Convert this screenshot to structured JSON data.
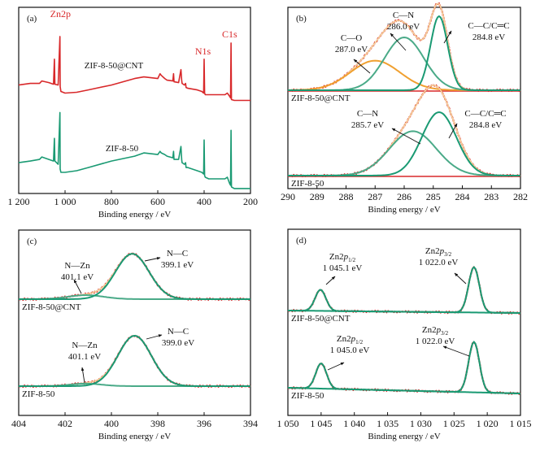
{
  "chart_data": [
    {
      "panel": "(a)",
      "type": "line",
      "title": "",
      "xlabel": "Binding energy / eV",
      "ylabel": "",
      "xlim": [
        1200,
        200
      ],
      "x_reversed": true,
      "xticks": [
        1200,
        1000,
        800,
        600,
        400,
        200
      ],
      "xtick_labels": [
        "1 200",
        "1 000",
        "800",
        "600",
        "400",
        "200"
      ],
      "grid": false,
      "series": [
        {
          "name": "ZIF-8-50@CNT",
          "color": "#d8282a",
          "x": [
            1200,
            1150,
            1110,
            1100,
            1070,
            1050,
            1046,
            1044,
            1030,
            1022,
            1021,
            1018,
            1000,
            950,
            900,
            800,
            700,
            660,
            600,
            590,
            585,
            570,
            560,
            535,
            532,
            530,
            510,
            500,
            497,
            495,
            485,
            480,
            478,
            470,
            430,
            410,
            402,
            400,
            398,
            395,
            380,
            330,
            310,
            300,
            290,
            286,
            284,
            282,
            270,
            200
          ],
          "y": [
            0.56,
            0.57,
            0.57,
            0.585,
            0.575,
            0.565,
            0.72,
            0.565,
            0.56,
            0.86,
            0.55,
            0.52,
            0.51,
            0.515,
            0.53,
            0.56,
            0.6,
            0.61,
            0.6,
            0.63,
            0.62,
            0.6,
            0.59,
            0.585,
            0.63,
            0.58,
            0.575,
            0.655,
            0.59,
            0.57,
            0.56,
            0.57,
            0.545,
            0.54,
            0.53,
            0.52,
            0.51,
            0.72,
            0.51,
            0.5,
            0.5,
            0.5,
            0.5,
            0.51,
            0.49,
            0.48,
            0.82,
            0.47,
            0.465,
            0.465
          ]
        },
        {
          "name": "ZIF-8-50",
          "color": "#1a9a73",
          "x": [
            1200,
            1150,
            1110,
            1100,
            1070,
            1050,
            1046,
            1044,
            1030,
            1022,
            1021,
            1018,
            1000,
            950,
            900,
            800,
            700,
            660,
            600,
            590,
            585,
            570,
            560,
            535,
            532,
            530,
            510,
            500,
            497,
            495,
            485,
            480,
            478,
            470,
            430,
            410,
            402,
            400,
            398,
            395,
            380,
            330,
            310,
            300,
            290,
            286,
            284,
            282,
            270,
            200
          ],
          "y": [
            0.08,
            0.09,
            0.1,
            0.115,
            0.1,
            0.09,
            0.23,
            0.09,
            0.07,
            0.39,
            0.04,
            0.02,
            0.02,
            0.03,
            0.05,
            0.09,
            0.12,
            0.14,
            0.13,
            0.15,
            0.14,
            0.13,
            0.12,
            0.11,
            0.15,
            0.1,
            0.1,
            0.18,
            0.1,
            0.08,
            0.07,
            0.08,
            0.05,
            0.05,
            0.03,
            0.02,
            0.01,
            0.22,
            0.0,
            -0.01,
            -0.02,
            -0.02,
            -0.02,
            -0.01,
            -0.05,
            -0.06,
            0.28,
            -0.07,
            -0.08,
            -0.08
          ]
        }
      ],
      "annotations": [
        {
          "text": "Zn2p",
          "x": 1020,
          "color": "#d8282a"
        },
        {
          "text": "N1s",
          "x": 400,
          "color": "#d8282a"
        },
        {
          "text": "C1s",
          "x": 284,
          "color": "#d8282a"
        },
        {
          "text": "ZIF-8-50@CNT",
          "label_for": "upper"
        },
        {
          "text": "ZIF-8-50",
          "label_for": "lower"
        }
      ]
    },
    {
      "panel": "(b)",
      "type": "line",
      "xlabel": "Binding energy / eV",
      "xlim": [
        290,
        282
      ],
      "x_reversed": true,
      "xticks": [
        290,
        289,
        288,
        287,
        286,
        285,
        284,
        283,
        282
      ],
      "xtick_labels": [
        "290",
        "289",
        "288",
        "287",
        "286",
        "285",
        "284",
        "283",
        "282"
      ],
      "grid": false,
      "samples": [
        {
          "name": "ZIF-8-50@CNT",
          "components": [
            {
              "label": "C—O",
              "center_eV": 287.0,
              "text": "287.0 eV",
              "color": "#f0a030",
              "height": 0.28,
              "fwhm": 2.0
            },
            {
              "label": "C—N",
              "center_eV": 286.0,
              "text": "286.0 eV",
              "color": "#4aaa88",
              "height": 0.5,
              "fwhm": 1.6
            },
            {
              "label": "C—C/C═C",
              "center_eV": 284.8,
              "text": "284.8 eV",
              "color": "#1a9a73",
              "height": 0.7,
              "fwhm": 0.7
            }
          ]
        },
        {
          "name": "ZIF-8-50",
          "components": [
            {
              "label": "C—N",
              "center_eV": 285.7,
              "text": "285.7 eV",
              "color": "#4aaa88",
              "height": 0.42,
              "fwhm": 1.9
            },
            {
              "label": "C—C/C═C",
              "center_eV": 284.8,
              "text": "284.8 eV",
              "color": "#1a9a73",
              "height": 0.6,
              "fwhm": 1.4
            }
          ]
        }
      ],
      "envelope_colors": {
        "raw": "#d8282a",
        "fit": "#f5d29a",
        "baseline": "#d8282a"
      }
    },
    {
      "panel": "(c)",
      "type": "line",
      "xlabel": "Binding energy / eV",
      "xlim": [
        404,
        394
      ],
      "x_reversed": true,
      "xticks": [
        404,
        402,
        400,
        398,
        396,
        394
      ],
      "xtick_labels": [
        "404",
        "402",
        "400",
        "398",
        "396",
        "394"
      ],
      "grid": false,
      "samples": [
        {
          "name": "ZIF-8-50@CNT",
          "components": [
            {
              "label": "N—Zn",
              "center_eV": 401.1,
              "text": "401.1 eV",
              "color": "#4aaa88",
              "height": 0.08,
              "fwhm": 1.8
            },
            {
              "label": "N—C",
              "center_eV": 399.1,
              "text": "399.1 eV",
              "color": "#1a9a73",
              "height": 0.9,
              "fwhm": 1.7
            }
          ]
        },
        {
          "name": "ZIF-8-50",
          "components": [
            {
              "label": "N—Zn",
              "center_eV": 401.1,
              "text": "401.1 eV",
              "color": "#4aaa88",
              "height": 0.05,
              "fwhm": 1.6
            },
            {
              "label": "N—C",
              "center_eV": 399.0,
              "text": "399.0 eV",
              "color": "#1a9a73",
              "height": 1.0,
              "fwhm": 1.7
            }
          ]
        }
      ],
      "envelope_colors": {
        "raw": "#d8282a",
        "fit": "#f5d29a"
      }
    },
    {
      "panel": "(d)",
      "type": "line",
      "xlabel": "Binding energy / eV",
      "xlim": [
        1050,
        1015
      ],
      "x_reversed": true,
      "xticks": [
        1050,
        1045,
        1040,
        1035,
        1030,
        1025,
        1020,
        1015
      ],
      "xtick_labels": [
        "1 050",
        "1 045",
        "1 040",
        "1 035",
        "1 030",
        "1 025",
        "1 020",
        "1 015"
      ],
      "grid": false,
      "samples": [
        {
          "name": "ZIF-8-50@CNT",
          "components": [
            {
              "label": "Zn2p1/2",
              "label_main": "Zn2",
              "label_italic": "p",
              "label_sub": "1/2",
              "center_eV": 1045.1,
              "text": "1 045.1 eV",
              "color": "#1a9a73",
              "height": 0.42,
              "fwhm": 1.9
            },
            {
              "label": "Zn2p3/2",
              "label_main": "Zn2",
              "label_italic": "p",
              "label_sub": "3/2",
              "center_eV": 1022.0,
              "text": "1 022.0 eV",
              "color": "#1a9a73",
              "height": 0.9,
              "fwhm": 1.9
            }
          ]
        },
        {
          "name": "ZIF-8-50",
          "components": [
            {
              "label": "Zn2p1/2",
              "label_main": "Zn2",
              "label_italic": "p",
              "label_sub": "1/2",
              "center_eV": 1045.0,
              "text": "1 045.0 eV",
              "color": "#1a9a73",
              "height": 0.5,
              "fwhm": 1.9
            },
            {
              "label": "Zn2p3/2",
              "label_main": "Zn2",
              "label_italic": "p",
              "label_sub": "3/2",
              "center_eV": 1022.0,
              "text": "1 022.0 eV",
              "color": "#1a9a73",
              "height": 1.0,
              "fwhm": 1.9
            }
          ]
        }
      ],
      "envelope_colors": {
        "raw": "#d8282a"
      }
    }
  ]
}
